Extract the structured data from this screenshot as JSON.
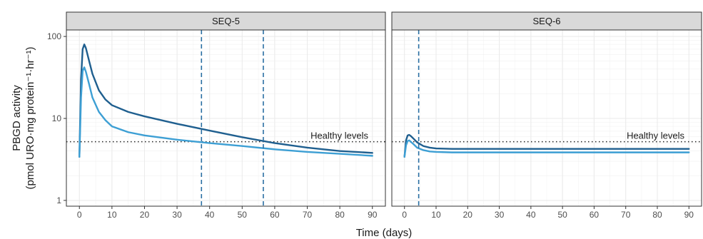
{
  "chart_data": {
    "type": "line",
    "xlabel": "Time (days)",
    "ylabel": "PBGD activity",
    "ylabel_units": "(pmol URO·mg protein⁻¹·hr⁻¹)",
    "y_scale": "log",
    "ylim": [
      0.85,
      120
    ],
    "xlim": [
      -4,
      94
    ],
    "x_ticks": [
      0,
      10,
      20,
      30,
      40,
      50,
      60,
      70,
      80,
      90
    ],
    "y_ticks": [
      1,
      10,
      100
    ],
    "grid": true,
    "healthy_level_value": 5.2,
    "colors": {
      "dark": "#1f5f8f",
      "light": "#3d9fd4",
      "strip_bg": "#d9d9d9",
      "panel_border": "#333333",
      "grid": "#ebebeb"
    },
    "panels": [
      {
        "title": "SEQ-5",
        "annotation": "Healthy levels",
        "vlines": [
          37.5,
          56.5
        ],
        "series": [
          {
            "color": "dark",
            "x": [
              0,
              0.5,
              1,
              1.5,
              2,
              3,
              4,
              6,
              8,
              10,
              15,
              20,
              30,
              40,
              50,
              60,
              70,
              80,
              90
            ],
            "y": [
              3.4,
              30,
              70,
              80,
              72,
              50,
              35,
              22,
              17,
              14.5,
              12,
              10.6,
              8.6,
              7.1,
              5.9,
              5.0,
              4.4,
              4.0,
              3.8
            ]
          },
          {
            "color": "light",
            "x": [
              0,
              0.5,
              1,
              1.5,
              2,
              3,
              4,
              6,
              8,
              10,
              15,
              20,
              30,
              40,
              50,
              60,
              70,
              80,
              90
            ],
            "y": [
              3.4,
              18,
              38,
              42,
              37,
              26,
              18,
              12,
              9.5,
              8.0,
              6.8,
              6.2,
              5.5,
              5.0,
              4.6,
              4.2,
              3.9,
              3.7,
              3.5
            ]
          }
        ]
      },
      {
        "title": "SEQ-6",
        "annotation": "Healthy levels",
        "vlines": [
          4.5
        ],
        "series": [
          {
            "color": "dark",
            "x": [
              0,
              0.5,
              1,
              1.5,
              2,
              3,
              4,
              6,
              8,
              10,
              15,
              20,
              30,
              40,
              50,
              60,
              70,
              80,
              90
            ],
            "y": [
              3.4,
              5.4,
              6.2,
              6.3,
              6.1,
              5.6,
              5.1,
              4.6,
              4.4,
              4.3,
              4.25,
              4.25,
              4.25,
              4.25,
              4.25,
              4.25,
              4.25,
              4.25,
              4.25
            ]
          },
          {
            "color": "light",
            "x": [
              0,
              0.5,
              1,
              1.5,
              2,
              3,
              4,
              6,
              8,
              10,
              15,
              20,
              30,
              40,
              50,
              60,
              70,
              80,
              90
            ],
            "y": [
              3.4,
              4.7,
              5.3,
              5.4,
              5.2,
              4.8,
              4.4,
              4.1,
              3.95,
              3.9,
              3.85,
              3.85,
              3.85,
              3.85,
              3.85,
              3.85,
              3.85,
              3.85,
              3.85
            ]
          }
        ]
      }
    ]
  }
}
